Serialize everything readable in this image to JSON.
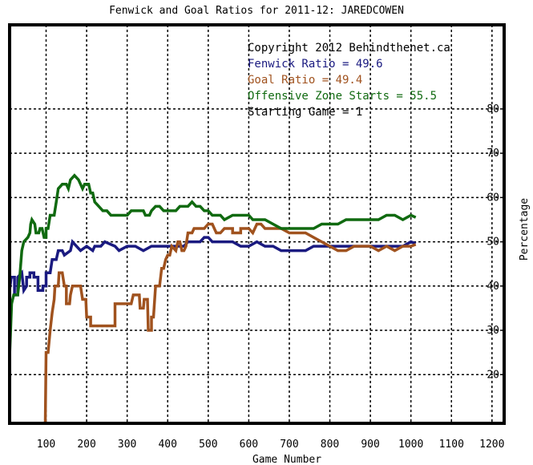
{
  "chart_data": {
    "type": "line",
    "title": "Fenwick and Goal Ratios for 2011-12: JAREDCOWEN",
    "xlabel": "Game Number",
    "ylabel": "Percentage",
    "xlim": [
      10,
      1230
    ],
    "ylim": [
      9,
      99
    ],
    "x_ticks": [
      100,
      200,
      300,
      400,
      500,
      600,
      700,
      800,
      900,
      1000,
      1100,
      1200
    ],
    "y_ticks": [
      20,
      30,
      40,
      50,
      60,
      70,
      80
    ],
    "grid": true,
    "legend": [
      {
        "text": "Copyright 2012 Behindthenet.ca",
        "color": "#000000"
      },
      {
        "text": "Fenwick Ratio = 49.6",
        "color": "#1a1a80"
      },
      {
        "text": "Goal Ratio = 49.4",
        "color": "#a0521e"
      },
      {
        "text": "Offensive Zone Starts = 55.5",
        "color": "#106a10"
      },
      {
        "text": "Starting Game = 1",
        "color": "#000000"
      }
    ],
    "series": [
      {
        "name": "Fenwick Ratio",
        "color": "#1a1a80",
        "points": [
          [
            10,
            39
          ],
          [
            14,
            42
          ],
          [
            22,
            42
          ],
          [
            22,
            38
          ],
          [
            30,
            38
          ],
          [
            30,
            42
          ],
          [
            40,
            43
          ],
          [
            45,
            39
          ],
          [
            52,
            40
          ],
          [
            52,
            42
          ],
          [
            60,
            42
          ],
          [
            60,
            43
          ],
          [
            70,
            43
          ],
          [
            70,
            42
          ],
          [
            80,
            42
          ],
          [
            80,
            39
          ],
          [
            92,
            39
          ],
          [
            92,
            40
          ],
          [
            100,
            40
          ],
          [
            100,
            43
          ],
          [
            110,
            43
          ],
          [
            115,
            46
          ],
          [
            125,
            46
          ],
          [
            130,
            48
          ],
          [
            140,
            48
          ],
          [
            145,
            47
          ],
          [
            160,
            48
          ],
          [
            165,
            50
          ],
          [
            175,
            49
          ],
          [
            185,
            48
          ],
          [
            200,
            49
          ],
          [
            215,
            48
          ],
          [
            220,
            49
          ],
          [
            235,
            49
          ],
          [
            245,
            50
          ],
          [
            270,
            49
          ],
          [
            280,
            48
          ],
          [
            300,
            49
          ],
          [
            320,
            49
          ],
          [
            340,
            48
          ],
          [
            360,
            49
          ],
          [
            380,
            49
          ],
          [
            400,
            49
          ],
          [
            420,
            49
          ],
          [
            440,
            49
          ],
          [
            450,
            50
          ],
          [
            470,
            50
          ],
          [
            480,
            50
          ],
          [
            490,
            51
          ],
          [
            500,
            51
          ],
          [
            510,
            50
          ],
          [
            520,
            50
          ],
          [
            540,
            50
          ],
          [
            560,
            50
          ],
          [
            580,
            49
          ],
          [
            600,
            49
          ],
          [
            620,
            50
          ],
          [
            640,
            49
          ],
          [
            660,
            49
          ],
          [
            680,
            48
          ],
          [
            700,
            48
          ],
          [
            720,
            48
          ],
          [
            740,
            48
          ],
          [
            760,
            49
          ],
          [
            780,
            49
          ],
          [
            800,
            49
          ],
          [
            820,
            49
          ],
          [
            840,
            49
          ],
          [
            860,
            49
          ],
          [
            880,
            49
          ],
          [
            900,
            49
          ],
          [
            920,
            49
          ],
          [
            940,
            49
          ],
          [
            960,
            49
          ],
          [
            980,
            49
          ],
          [
            1000,
            50
          ],
          [
            1012,
            49.6
          ]
        ]
      },
      {
        "name": "Goal Ratio",
        "color": "#a0521e",
        "points": [
          [
            98,
            9
          ],
          [
            100,
            25
          ],
          [
            105,
            25
          ],
          [
            110,
            30
          ],
          [
            115,
            34
          ],
          [
            120,
            37
          ],
          [
            122,
            40
          ],
          [
            130,
            40
          ],
          [
            132,
            43
          ],
          [
            140,
            43
          ],
          [
            145,
            40
          ],
          [
            150,
            40
          ],
          [
            150,
            36
          ],
          [
            158,
            36
          ],
          [
            160,
            38
          ],
          [
            165,
            40
          ],
          [
            175,
            40
          ],
          [
            185,
            40
          ],
          [
            190,
            37
          ],
          [
            198,
            37
          ],
          [
            200,
            33
          ],
          [
            210,
            33
          ],
          [
            210,
            31
          ],
          [
            225,
            31
          ],
          [
            240,
            31
          ],
          [
            250,
            31
          ],
          [
            270,
            31
          ],
          [
            270,
            36
          ],
          [
            290,
            36
          ],
          [
            300,
            36
          ],
          [
            310,
            36
          ],
          [
            315,
            38
          ],
          [
            330,
            38
          ],
          [
            332,
            35
          ],
          [
            340,
            35
          ],
          [
            342,
            37
          ],
          [
            350,
            37
          ],
          [
            352,
            30
          ],
          [
            360,
            30
          ],
          [
            360,
            33
          ],
          [
            365,
            33
          ],
          [
            370,
            40
          ],
          [
            380,
            40
          ],
          [
            385,
            44
          ],
          [
            390,
            44
          ],
          [
            395,
            46
          ],
          [
            400,
            47
          ],
          [
            405,
            47
          ],
          [
            410,
            49
          ],
          [
            420,
            48
          ],
          [
            425,
            50
          ],
          [
            430,
            50
          ],
          [
            435,
            48
          ],
          [
            440,
            48
          ],
          [
            445,
            49
          ],
          [
            450,
            52
          ],
          [
            460,
            52
          ],
          [
            465,
            53
          ],
          [
            490,
            53
          ],
          [
            500,
            54
          ],
          [
            510,
            54
          ],
          [
            520,
            52
          ],
          [
            530,
            52
          ],
          [
            540,
            53
          ],
          [
            560,
            53
          ],
          [
            560,
            52
          ],
          [
            580,
            52
          ],
          [
            580,
            53
          ],
          [
            590,
            53
          ],
          [
            600,
            53
          ],
          [
            610,
            52
          ],
          [
            620,
            54
          ],
          [
            630,
            54
          ],
          [
            640,
            53
          ],
          [
            660,
            53
          ],
          [
            680,
            53
          ],
          [
            700,
            52
          ],
          [
            720,
            52
          ],
          [
            740,
            52
          ],
          [
            760,
            51
          ],
          [
            780,
            50
          ],
          [
            800,
            49
          ],
          [
            820,
            48
          ],
          [
            840,
            48
          ],
          [
            860,
            49
          ],
          [
            880,
            49
          ],
          [
            900,
            49
          ],
          [
            920,
            48
          ],
          [
            940,
            49
          ],
          [
            960,
            48
          ],
          [
            980,
            49
          ],
          [
            1000,
            49
          ],
          [
            1012,
            49.4
          ]
        ]
      },
      {
        "name": "Offensive Zone Starts",
        "color": "#106a10",
        "points": [
          [
            10,
            24
          ],
          [
            15,
            36
          ],
          [
            20,
            38
          ],
          [
            30,
            38
          ],
          [
            35,
            42
          ],
          [
            40,
            48
          ],
          [
            45,
            50
          ],
          [
            55,
            51
          ],
          [
            60,
            52
          ],
          [
            62,
            54
          ],
          [
            65,
            55
          ],
          [
            72,
            54
          ],
          [
            75,
            52
          ],
          [
            82,
            52
          ],
          [
            85,
            53
          ],
          [
            90,
            53
          ],
          [
            95,
            51
          ],
          [
            100,
            51
          ],
          [
            100,
            53
          ],
          [
            105,
            53
          ],
          [
            110,
            56
          ],
          [
            120,
            56
          ],
          [
            125,
            59
          ],
          [
            130,
            62
          ],
          [
            140,
            63
          ],
          [
            150,
            63
          ],
          [
            155,
            62
          ],
          [
            160,
            64
          ],
          [
            170,
            65
          ],
          [
            180,
            64
          ],
          [
            190,
            62
          ],
          [
            195,
            63
          ],
          [
            205,
            63
          ],
          [
            210,
            61
          ],
          [
            215,
            61
          ],
          [
            220,
            59
          ],
          [
            230,
            58
          ],
          [
            240,
            57
          ],
          [
            250,
            57
          ],
          [
            260,
            56
          ],
          [
            270,
            56
          ],
          [
            280,
            56
          ],
          [
            290,
            56
          ],
          [
            300,
            56
          ],
          [
            310,
            57
          ],
          [
            320,
            57
          ],
          [
            330,
            57
          ],
          [
            340,
            57
          ],
          [
            345,
            56
          ],
          [
            355,
            56
          ],
          [
            360,
            57
          ],
          [
            370,
            58
          ],
          [
            380,
            58
          ],
          [
            390,
            57
          ],
          [
            400,
            57
          ],
          [
            410,
            57
          ],
          [
            420,
            57
          ],
          [
            430,
            58
          ],
          [
            440,
            58
          ],
          [
            450,
            58
          ],
          [
            460,
            59
          ],
          [
            470,
            58
          ],
          [
            480,
            58
          ],
          [
            490,
            57
          ],
          [
            500,
            57
          ],
          [
            510,
            56
          ],
          [
            520,
            56
          ],
          [
            530,
            56
          ],
          [
            540,
            55
          ],
          [
            560,
            56
          ],
          [
            580,
            56
          ],
          [
            600,
            56
          ],
          [
            610,
            55
          ],
          [
            620,
            55
          ],
          [
            640,
            55
          ],
          [
            660,
            54
          ],
          [
            680,
            53
          ],
          [
            700,
            53
          ],
          [
            720,
            53
          ],
          [
            740,
            53
          ],
          [
            760,
            53
          ],
          [
            780,
            54
          ],
          [
            800,
            54
          ],
          [
            820,
            54
          ],
          [
            840,
            55
          ],
          [
            860,
            55
          ],
          [
            880,
            55
          ],
          [
            900,
            55
          ],
          [
            920,
            55
          ],
          [
            940,
            56
          ],
          [
            960,
            56
          ],
          [
            980,
            55
          ],
          [
            1000,
            56
          ],
          [
            1012,
            55.5
          ]
        ]
      }
    ]
  }
}
